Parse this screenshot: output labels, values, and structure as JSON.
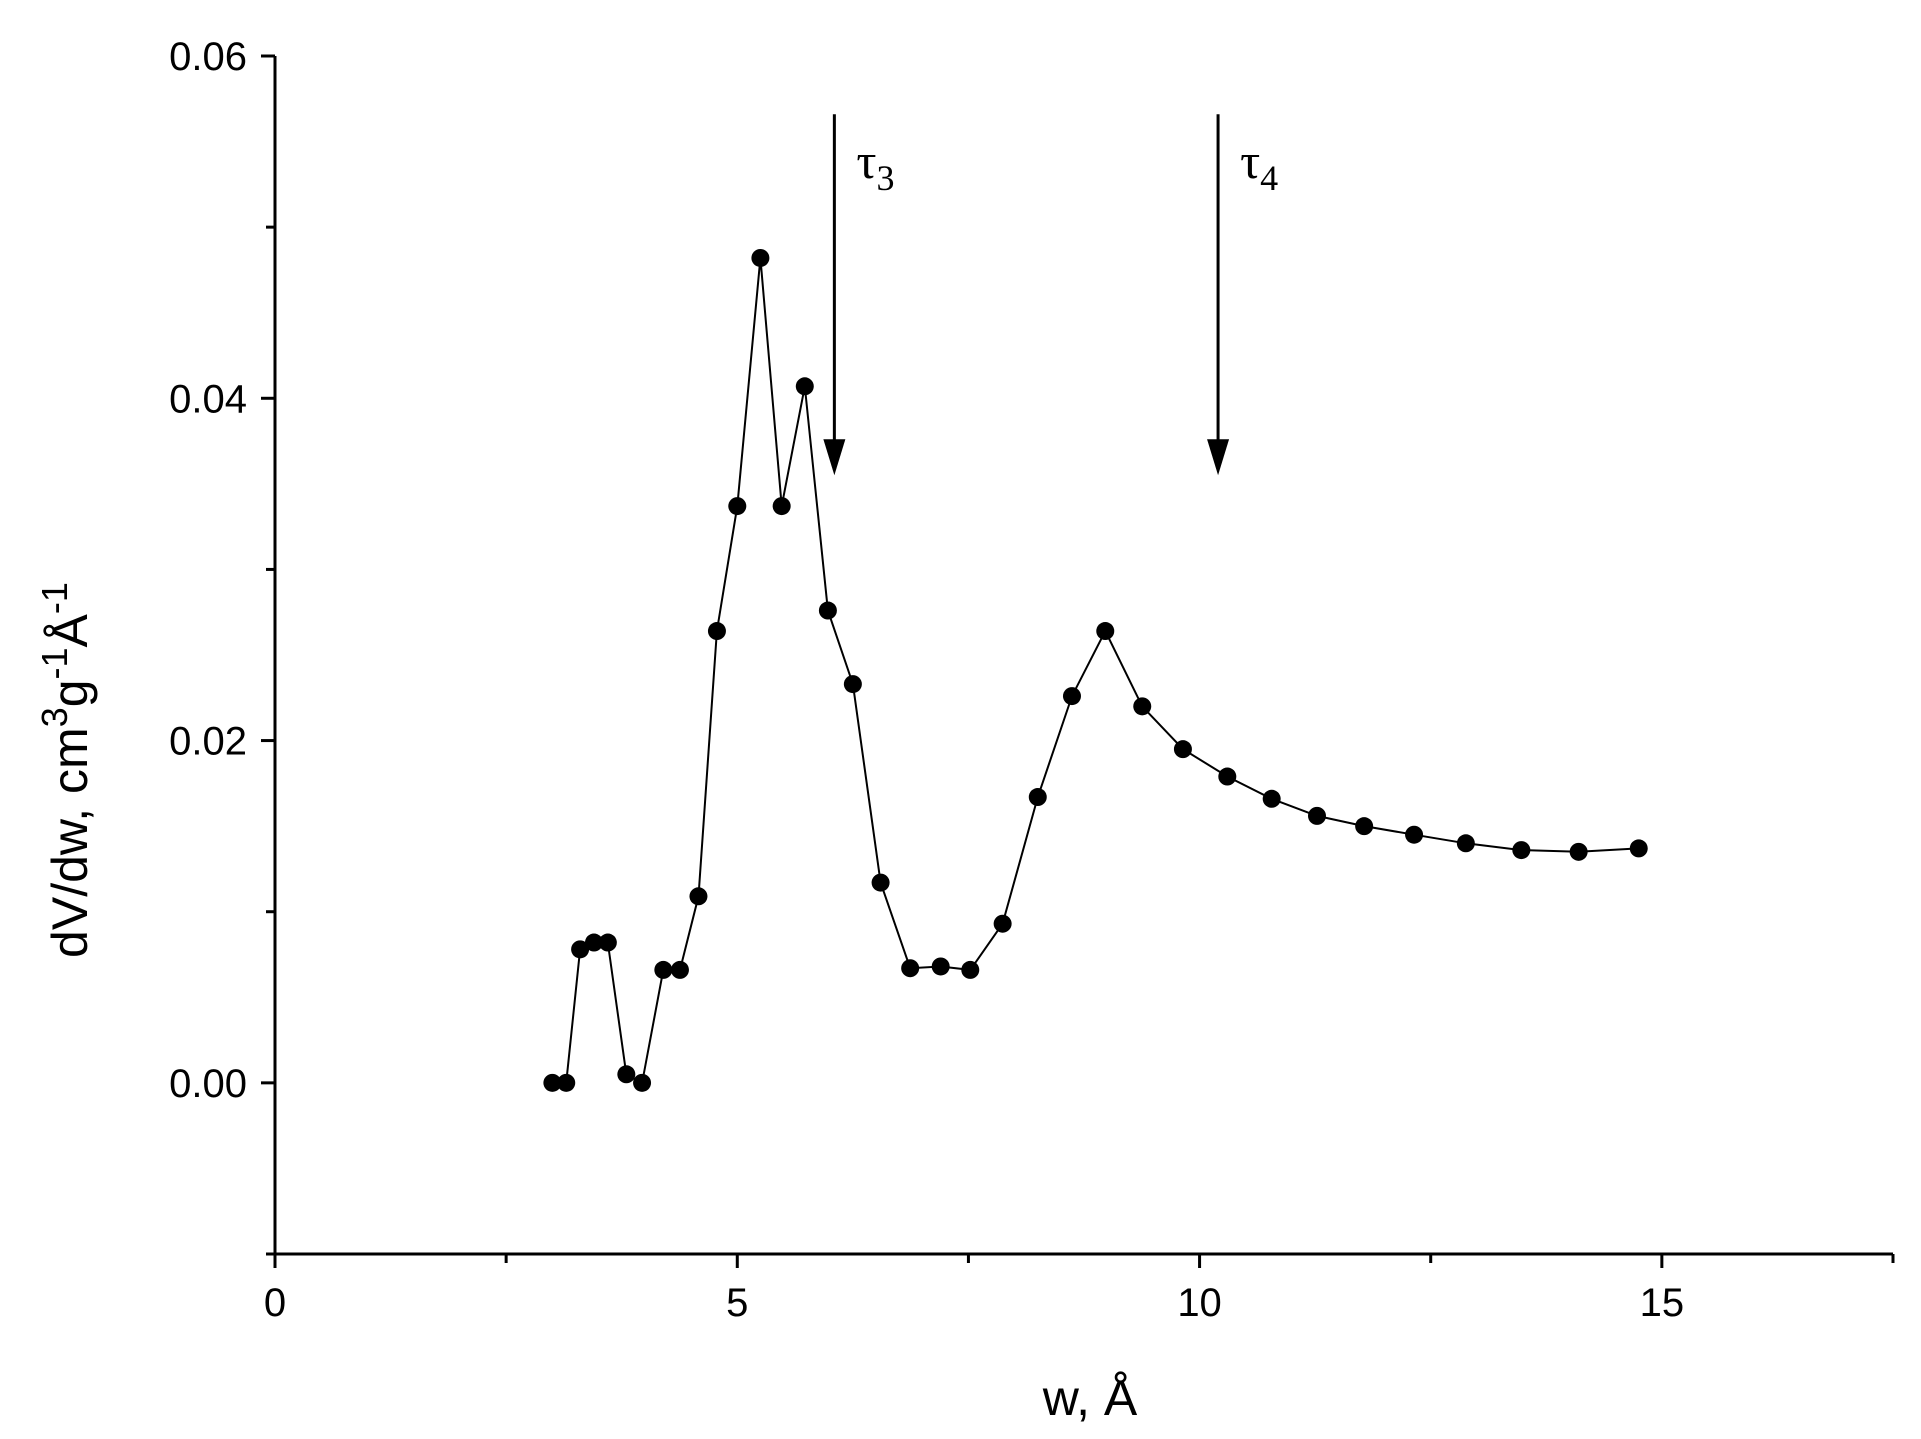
{
  "chart_data": {
    "type": "line",
    "title": "",
    "xlabel": "w, Å",
    "ylabel_parts": [
      "dV/dw, cm",
      "3",
      "g",
      "-1",
      "Å",
      "-1"
    ],
    "xlim": [
      0,
      17.5
    ],
    "ylim": [
      -0.01,
      0.06
    ],
    "x_ticks": [
      0,
      5,
      10,
      15
    ],
    "x_tick_labels": [
      "0",
      "5",
      "10",
      "15"
    ],
    "x_minor_ticks": [
      2.5,
      7.5,
      12.5,
      17.5
    ],
    "y_ticks": [
      0.0,
      0.02,
      0.04,
      0.06
    ],
    "y_tick_labels": [
      "0.00",
      "0.02",
      "0.04",
      "0.06"
    ],
    "y_minor_ticks": [
      -0.01,
      0.01,
      0.03,
      0.05
    ],
    "grid": false,
    "legend": "none",
    "series": [
      {
        "marker": "filled-circle",
        "color": "#000000",
        "x": [
          3.0,
          3.15,
          3.3,
          3.45,
          3.6,
          3.8,
          3.97,
          4.2,
          4.38,
          4.58,
          4.78,
          5.0,
          5.25,
          5.48,
          5.73,
          5.98,
          6.25,
          6.55,
          6.87,
          7.2,
          7.52,
          7.87,
          8.25,
          8.62,
          8.98,
          9.38,
          9.82,
          10.3,
          10.78,
          11.27,
          11.78,
          12.32,
          12.88,
          13.48,
          14.1,
          14.75
        ],
        "y": [
          0.0,
          0.0,
          0.0078,
          0.0082,
          0.0082,
          0.0005,
          0.0,
          0.0066,
          0.0066,
          0.0109,
          0.0264,
          0.0337,
          0.0482,
          0.0337,
          0.0407,
          0.0276,
          0.0233,
          0.0117,
          0.0067,
          0.0068,
          0.0066,
          0.0093,
          0.0167,
          0.0226,
          0.0264,
          0.022,
          0.0195,
          0.0179,
          0.0166,
          0.0156,
          0.015,
          0.0145,
          0.014,
          0.0136,
          0.0135,
          0.0137
        ]
      }
    ],
    "annotations": [
      {
        "id": "tau3",
        "symbol": "τ",
        "subscript": "3",
        "x": 6.05,
        "arrow_y_top": 0.0566,
        "arrow_y_tip": 0.0355
      },
      {
        "id": "tau4",
        "symbol": "τ",
        "subscript": "4",
        "x": 10.2,
        "arrow_y_top": 0.0566,
        "arrow_y_tip": 0.0355
      }
    ]
  }
}
